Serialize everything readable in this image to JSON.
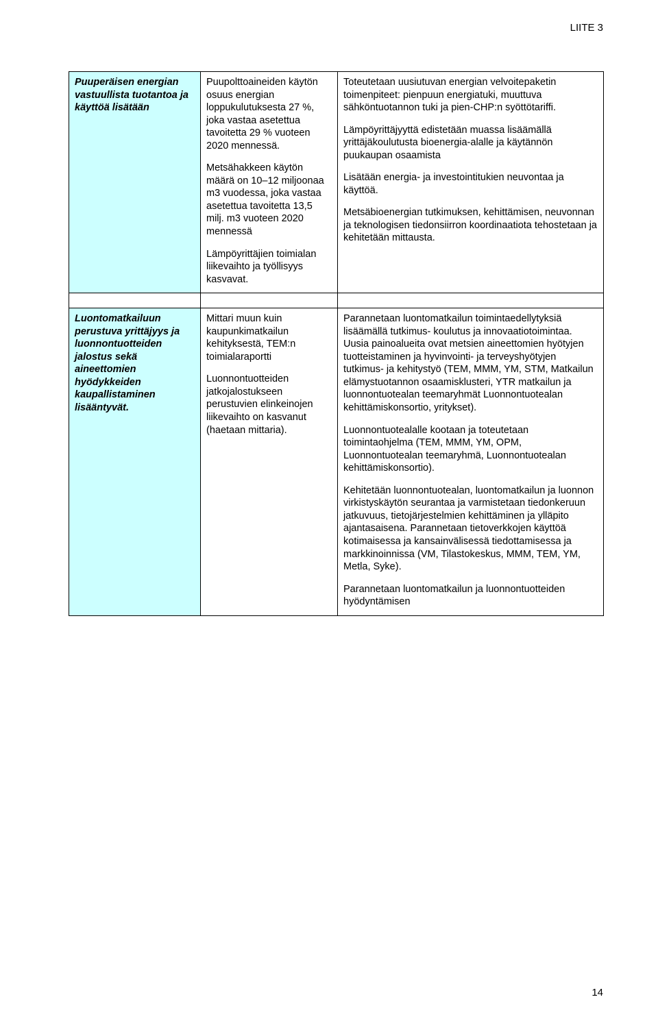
{
  "header": {
    "appendix": "LIITE 3"
  },
  "pageNumber": "14",
  "colors": {
    "background": "#ffffff",
    "text": "#000000",
    "cellBorder": "#000000",
    "blueCell": "#ccffff"
  },
  "typography": {
    "fontFamily": "Verdana, Geneva, sans-serif",
    "baseFontSize": 14.5,
    "headerFontSize": 15,
    "lineHeight": 1.28
  },
  "table": {
    "columns": [
      {
        "widthPx": 192
      },
      {
        "widthPx": 200
      },
      {
        "widthPx": 388
      }
    ],
    "rows": [
      {
        "cells": [
          {
            "style": "blue",
            "blocks": [
              "Puuperäisen energian vastuullista tuotantoa ja käyttöä lisätään"
            ]
          },
          {
            "style": "plain",
            "blocks": [
              "Puupolttoaineiden käytön osuus energian loppukulutuksesta 27 %, joka vastaa asetettua tavoitetta 29 % vuoteen 2020 mennessä.",
              "Metsähakkeen käytön määrä on 10–12 miljoonaa m3 vuodessa, joka vastaa asetettua tavoitetta 13,5 milj. m3 vuoteen 2020 mennessä",
              "Lämpöyrittäjien toimialan liikevaihto ja työllisyys kasvavat."
            ]
          },
          {
            "style": "plain",
            "blocks": [
              "Toteutetaan uusiutuvan energian velvoitepaketin toimenpiteet: pienpuun energiatuki, muuttuva sähköntuotannon tuki ja pien-CHP:n syöttötariffi.",
              "Lämpöyrittäjyyttä edistetään muassa lisäämällä yrittäjäkoulutusta bioenergia-alalle ja käytännön puukaupan osaamista",
              "Lisätään energia- ja investointitukien neuvontaa ja käyttöä.",
              "Metsäbioenergian tutkimuksen, kehittämisen, neuvonnan ja teknologisen tiedonsiirron koordinaatiota tehostetaan ja kehitetään mittausta."
            ]
          }
        ]
      },
      {
        "cells": [
          {
            "style": "blue",
            "blocks": [
              "Luontomatkailuun perustuva yrittäjyys ja luonnontuotteiden jalostus sekä aineettomien hyödykkeiden kaupallistaminen lisääntyvät."
            ]
          },
          {
            "style": "plain",
            "blocks": [
              "Mittari muun kuin kaupunkimatkailun kehityksestä, TEM:n toimialaraportti",
              "Luonnontuotteiden jatkojalostukseen perustuvien elinkeinojen liikevaihto on kasvanut (haetaan mittaria)."
            ]
          },
          {
            "style": "plain",
            "blocks": [
              "Parannetaan luontomatkailun toimintaedellytyksiä lisäämällä tutkimus- koulutus ja innovaatiotoimintaa. Uusia painoalueita ovat metsien aineettomien hyötyjen tuotteistaminen ja hyvinvointi- ja terveyshyötyjen tutkimus- ja kehitystyö (TEM, MMM, YM, STM, Matkailun elämystuotannon osaamisklusteri, YTR matkailun ja luonnontuotealan teemaryhmät Luonnontuotealan kehittämiskonsortio, yritykset).",
              "Luonnontuotealalle kootaan ja toteutetaan toimintaohjelma (TEM, MMM, YM, OPM, Luonnontuotealan teemaryhmä, Luonnontuotealan kehittämiskonsortio).",
              "Kehitetään luonnontuotealan, luontomatkailun ja luonnon virkistyskäytön seurantaa ja varmistetaan tiedonkeruun jatkuvuus, tietojärjestelmien kehittäminen ja ylläpito ajantasaisena. Parannetaan tietoverkkojen käyttöä kotimaisessa ja kansainvälisessä tiedottamisessa ja markkinoinnissa (VM, Tilastokeskus, MMM, TEM, YM, Metla, Syke).",
              "Parannetaan luontomatkailun ja luonnontuotteiden hyödyntämisen"
            ]
          }
        ]
      }
    ]
  }
}
